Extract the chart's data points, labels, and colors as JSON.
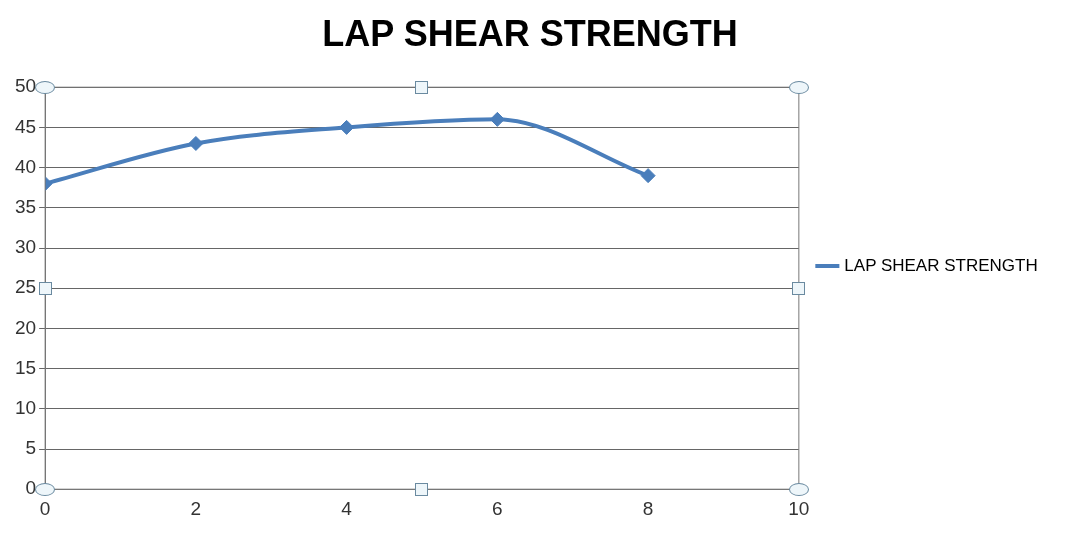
{
  "chart_data": {
    "type": "line",
    "title": "LAP SHEAR STRENGTH",
    "x": [
      0,
      2,
      4,
      6,
      8
    ],
    "series": [
      {
        "name": "LAP SHEAR STRENGTH",
        "color": "#4a7ebb",
        "values": [
          38,
          43,
          45,
          46,
          39
        ]
      }
    ],
    "xlim": [
      0,
      10
    ],
    "xticks": [
      0,
      2,
      4,
      6,
      8,
      10
    ],
    "ylim": [
      0,
      50
    ],
    "yticks": [
      0,
      5,
      10,
      15,
      20,
      25,
      30,
      35,
      40,
      45,
      50
    ],
    "grid": "y",
    "legend": "right",
    "marker": "diamond",
    "line_style": "solid"
  }
}
